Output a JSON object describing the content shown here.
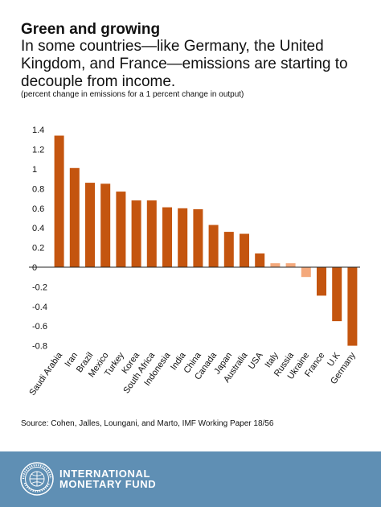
{
  "header": {
    "title": "Green and growing",
    "subtitle": "In some countries—like Germany, the United Kingdom, and France—emissions are starting to decouple from income.",
    "note": "(percent change in emissions for a 1 percent change in output)"
  },
  "chart_data": {
    "type": "bar",
    "title": "Green and growing",
    "ylabel": "percent change in emissions for a 1 percent change in output",
    "ylim": [
      -0.85,
      1.5
    ],
    "yticks": [
      1.4,
      1.2,
      1,
      0.8,
      0.6,
      0.4,
      0.2,
      0,
      -0.2,
      -0.4,
      -0.6,
      -0.8
    ],
    "ytick_labels": [
      "1.4",
      "1.2",
      "1",
      "0.8",
      "0.6",
      "0.4",
      "0.2",
      "0",
      "-0.2",
      "-0.4",
      "-0.6",
      "-0.8"
    ],
    "categories": [
      "Saudi Arabia",
      "Iran",
      "Brazil",
      "Mexico",
      "Turkey",
      "Korea",
      "South Africa",
      "Indonesia",
      "India",
      "China",
      "Canada",
      "Japan",
      "Australia",
      "USA",
      "Italy",
      "Russia",
      "Ukraine",
      "France",
      "U.K",
      "Germany"
    ],
    "values": [
      1.34,
      1.01,
      0.86,
      0.85,
      0.77,
      0.68,
      0.68,
      0.61,
      0.6,
      0.59,
      0.43,
      0.36,
      0.34,
      0.14,
      0.04,
      0.04,
      -0.1,
      -0.29,
      -0.55,
      -0.8
    ],
    "highlight": [
      "Italy",
      "Russia",
      "Ukraine"
    ],
    "grid": false,
    "legend": "none",
    "colors": {
      "primary": "#c4550f",
      "highlight": "#f4a97c"
    }
  },
  "source": "Source: Cohen, Jalles, Loungani, and Marto, IMF Working Paper 18/56",
  "footer": {
    "org_line1": "INTERNATIONAL",
    "org_line2": "MONETARY FUND",
    "logo": "imf-seal-icon",
    "background": "#5f8fb4"
  }
}
